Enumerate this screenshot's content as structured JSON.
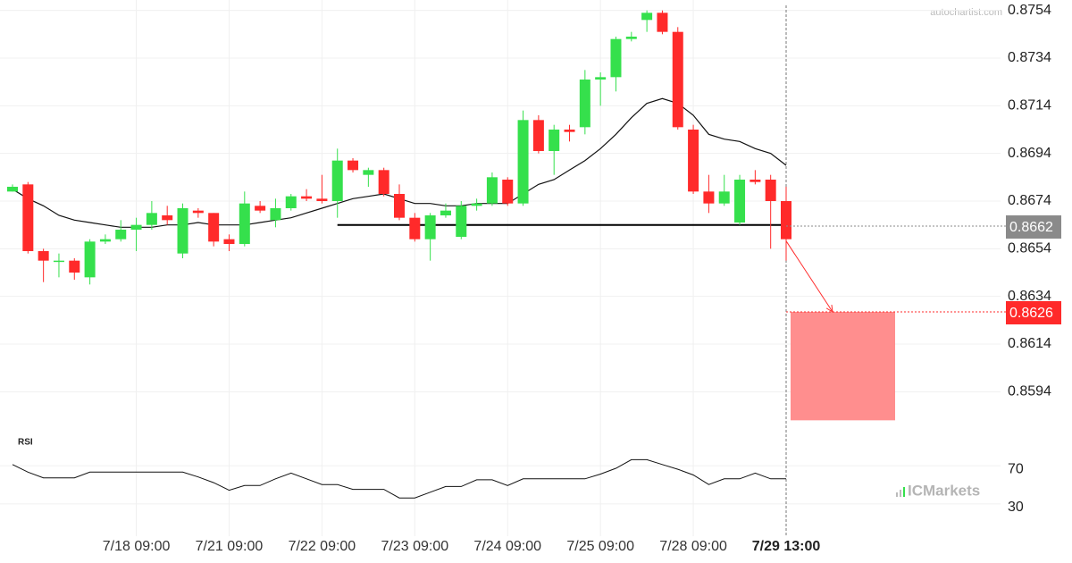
{
  "chart_data": {
    "type": "candlestick",
    "watermark": "autochartist.com",
    "brand": "ICMarkets",
    "categories": [
      null,
      null,
      null,
      null,
      null,
      null,
      null,
      null,
      "7/18 09:00",
      null,
      null,
      null,
      null,
      null,
      "7/21 09:00",
      null,
      null,
      null,
      null,
      null,
      "7/22 09:00",
      null,
      null,
      null,
      null,
      null,
      "7/23 09:00",
      null,
      null,
      null,
      null,
      null,
      "7/24 09:00",
      null,
      null,
      null,
      null,
      null,
      "7/25 09:00",
      null,
      null,
      null,
      null,
      null,
      "7/28 09:00",
      null,
      null,
      null,
      null,
      null,
      "7/29 13:00"
    ],
    "open": [
      0.8678,
      0.8681,
      0.8653,
      0.8649,
      0.8649,
      0.8642,
      0.8657,
      0.8658,
      0.8662,
      0.8664,
      0.8668,
      0.8652,
      0.867,
      0.8669,
      0.8658,
      0.8656,
      0.8672,
      0.8666,
      0.8671,
      0.8676,
      0.8675,
      0.8674,
      0.8691,
      0.8685,
      0.8687,
      0.8677,
      0.8667,
      0.8658,
      0.8668,
      0.8659,
      0.8672,
      0.8673,
      0.8683,
      0.8673,
      0.8708,
      0.8695,
      0.8704,
      0.8705,
      0.8725,
      0.8726,
      0.8742,
      0.875,
      0.8753,
      0.8745,
      0.8704,
      0.8678,
      0.8673,
      0.8665,
      0.8683,
      0.8683,
      0.8674
    ],
    "high": [
      0.8681,
      0.8682,
      0.8654,
      0.8652,
      0.865,
      0.8658,
      0.866,
      0.8666,
      0.8667,
      0.8674,
      0.8672,
      0.8673,
      0.8671,
      0.8669,
      0.866,
      0.8678,
      0.8674,
      0.8675,
      0.8677,
      0.8679,
      0.8685,
      0.8696,
      0.8692,
      0.8688,
      0.8688,
      0.8681,
      0.8669,
      0.8669,
      0.8673,
      0.8674,
      0.8675,
      0.8686,
      0.8684,
      0.8712,
      0.871,
      0.8706,
      0.8706,
      0.8729,
      0.8728,
      0.8743,
      0.8745,
      0.8754,
      0.8754,
      0.8747,
      0.8706,
      0.8685,
      0.8685,
      0.8685,
      0.8687,
      0.8685,
      0.868
    ],
    "low": [
      0.8678,
      0.8652,
      0.864,
      0.8642,
      0.8641,
      0.8639,
      0.8656,
      0.8657,
      0.8653,
      0.8662,
      0.8664,
      0.865,
      0.8667,
      0.8655,
      0.8653,
      0.8655,
      0.8669,
      0.8663,
      0.867,
      0.8674,
      0.8673,
      0.8667,
      0.8686,
      0.868,
      0.8676,
      0.8666,
      0.8657,
      0.8649,
      0.8667,
      0.8658,
      0.867,
      0.8672,
      0.8672,
      0.8672,
      0.8694,
      0.8685,
      0.8699,
      0.8702,
      0.8714,
      0.872,
      0.8741,
      0.8745,
      0.8744,
      0.8704,
      0.8677,
      0.8669,
      0.8672,
      0.8664,
      0.8681,
      0.8654,
      0.8649
    ],
    "close": [
      0.868,
      0.8653,
      0.8649,
      0.8649,
      0.8644,
      0.8657,
      0.8658,
      0.8662,
      0.8664,
      0.8669,
      0.8666,
      0.8671,
      0.8669,
      0.8657,
      0.8656,
      0.8673,
      0.867,
      0.8671,
      0.8676,
      0.8675,
      0.8674,
      0.8691,
      0.8687,
      0.8687,
      0.8677,
      0.8667,
      0.8658,
      0.8668,
      0.867,
      0.8672,
      0.8673,
      0.8684,
      0.8673,
      0.8708,
      0.8695,
      0.8704,
      0.8703,
      0.8725,
      0.8726,
      0.8742,
      0.8743,
      0.8753,
      0.8745,
      0.8705,
      0.8678,
      0.8673,
      0.8678,
      0.8683,
      0.8682,
      0.8674,
      0.8658
    ],
    "up_color": "#35e04c",
    "down_color": "#ff2a2a",
    "ylim": [
      0.8578,
      0.8758
    ],
    "yticks": [
      0.8754,
      0.8734,
      0.8714,
      0.8694,
      0.8674,
      0.8654,
      0.8634,
      0.8614,
      0.8594
    ],
    "grid": true,
    "moving_average": {
      "color": "#111111",
      "values": [
        0.8679,
        0.8675,
        0.8672,
        0.8668,
        0.8666,
        0.8665,
        0.8664,
        0.8663,
        0.8663,
        0.8663,
        0.8664,
        0.8664,
        0.8665,
        0.8664,
        0.8664,
        0.8664,
        0.8665,
        0.8666,
        0.8667,
        0.8669,
        0.8671,
        0.8673,
        0.8675,
        0.8676,
        0.8677,
        0.8675,
        0.8673,
        0.8673,
        0.8672,
        0.8672,
        0.8673,
        0.8673,
        0.8673,
        0.8677,
        0.8681,
        0.8683,
        0.8687,
        0.8691,
        0.8696,
        0.8702,
        0.8709,
        0.8715,
        0.8717,
        0.8715,
        0.871,
        0.8702,
        0.87,
        0.8699,
        0.8696,
        0.8694,
        0.8689
      ]
    },
    "support": {
      "color": "#000000",
      "values": [
        null,
        null,
        null,
        null,
        null,
        null,
        null,
        null,
        null,
        null,
        null,
        null,
        null,
        null,
        null,
        null,
        null,
        null,
        null,
        null,
        null,
        0.8664,
        0.8664,
        0.8664,
        0.8664,
        0.8664,
        0.8664,
        0.8664,
        0.8664,
        0.8664,
        0.8664,
        0.8664,
        0.8664,
        0.8664,
        0.8664,
        0.8664,
        0.8664,
        0.8664,
        0.8664,
        0.8664,
        0.8664,
        0.8664,
        0.8664,
        0.8664,
        0.8664,
        0.8664,
        0.8664,
        0.8664,
        0.8664,
        0.8664,
        0.8664
      ]
    },
    "price_tags": [
      {
        "value": 0.8662,
        "color": "#8a8a8a"
      },
      {
        "value": 0.8626,
        "color": "#ff2a2a"
      }
    ],
    "forecast": {
      "target": 0.8626,
      "zone_bottom": 0.8582,
      "color": "#ff8e8e"
    },
    "rsi": {
      "title": "RSI",
      "color": "#111111",
      "ylim": [
        0,
        100
      ],
      "yticks": [
        70,
        30
      ],
      "values": [
        75,
        67,
        61,
        61,
        61,
        67,
        67,
        67,
        67,
        67,
        67,
        67,
        62,
        56,
        48,
        53,
        53,
        60,
        66,
        60,
        54,
        54,
        49,
        49,
        49,
        40,
        40,
        46,
        52,
        52,
        59,
        59,
        53,
        60,
        60,
        60,
        60,
        60,
        65,
        71,
        80,
        80,
        75,
        70,
        64,
        54,
        60,
        60,
        66,
        60,
        60
      ]
    }
  }
}
